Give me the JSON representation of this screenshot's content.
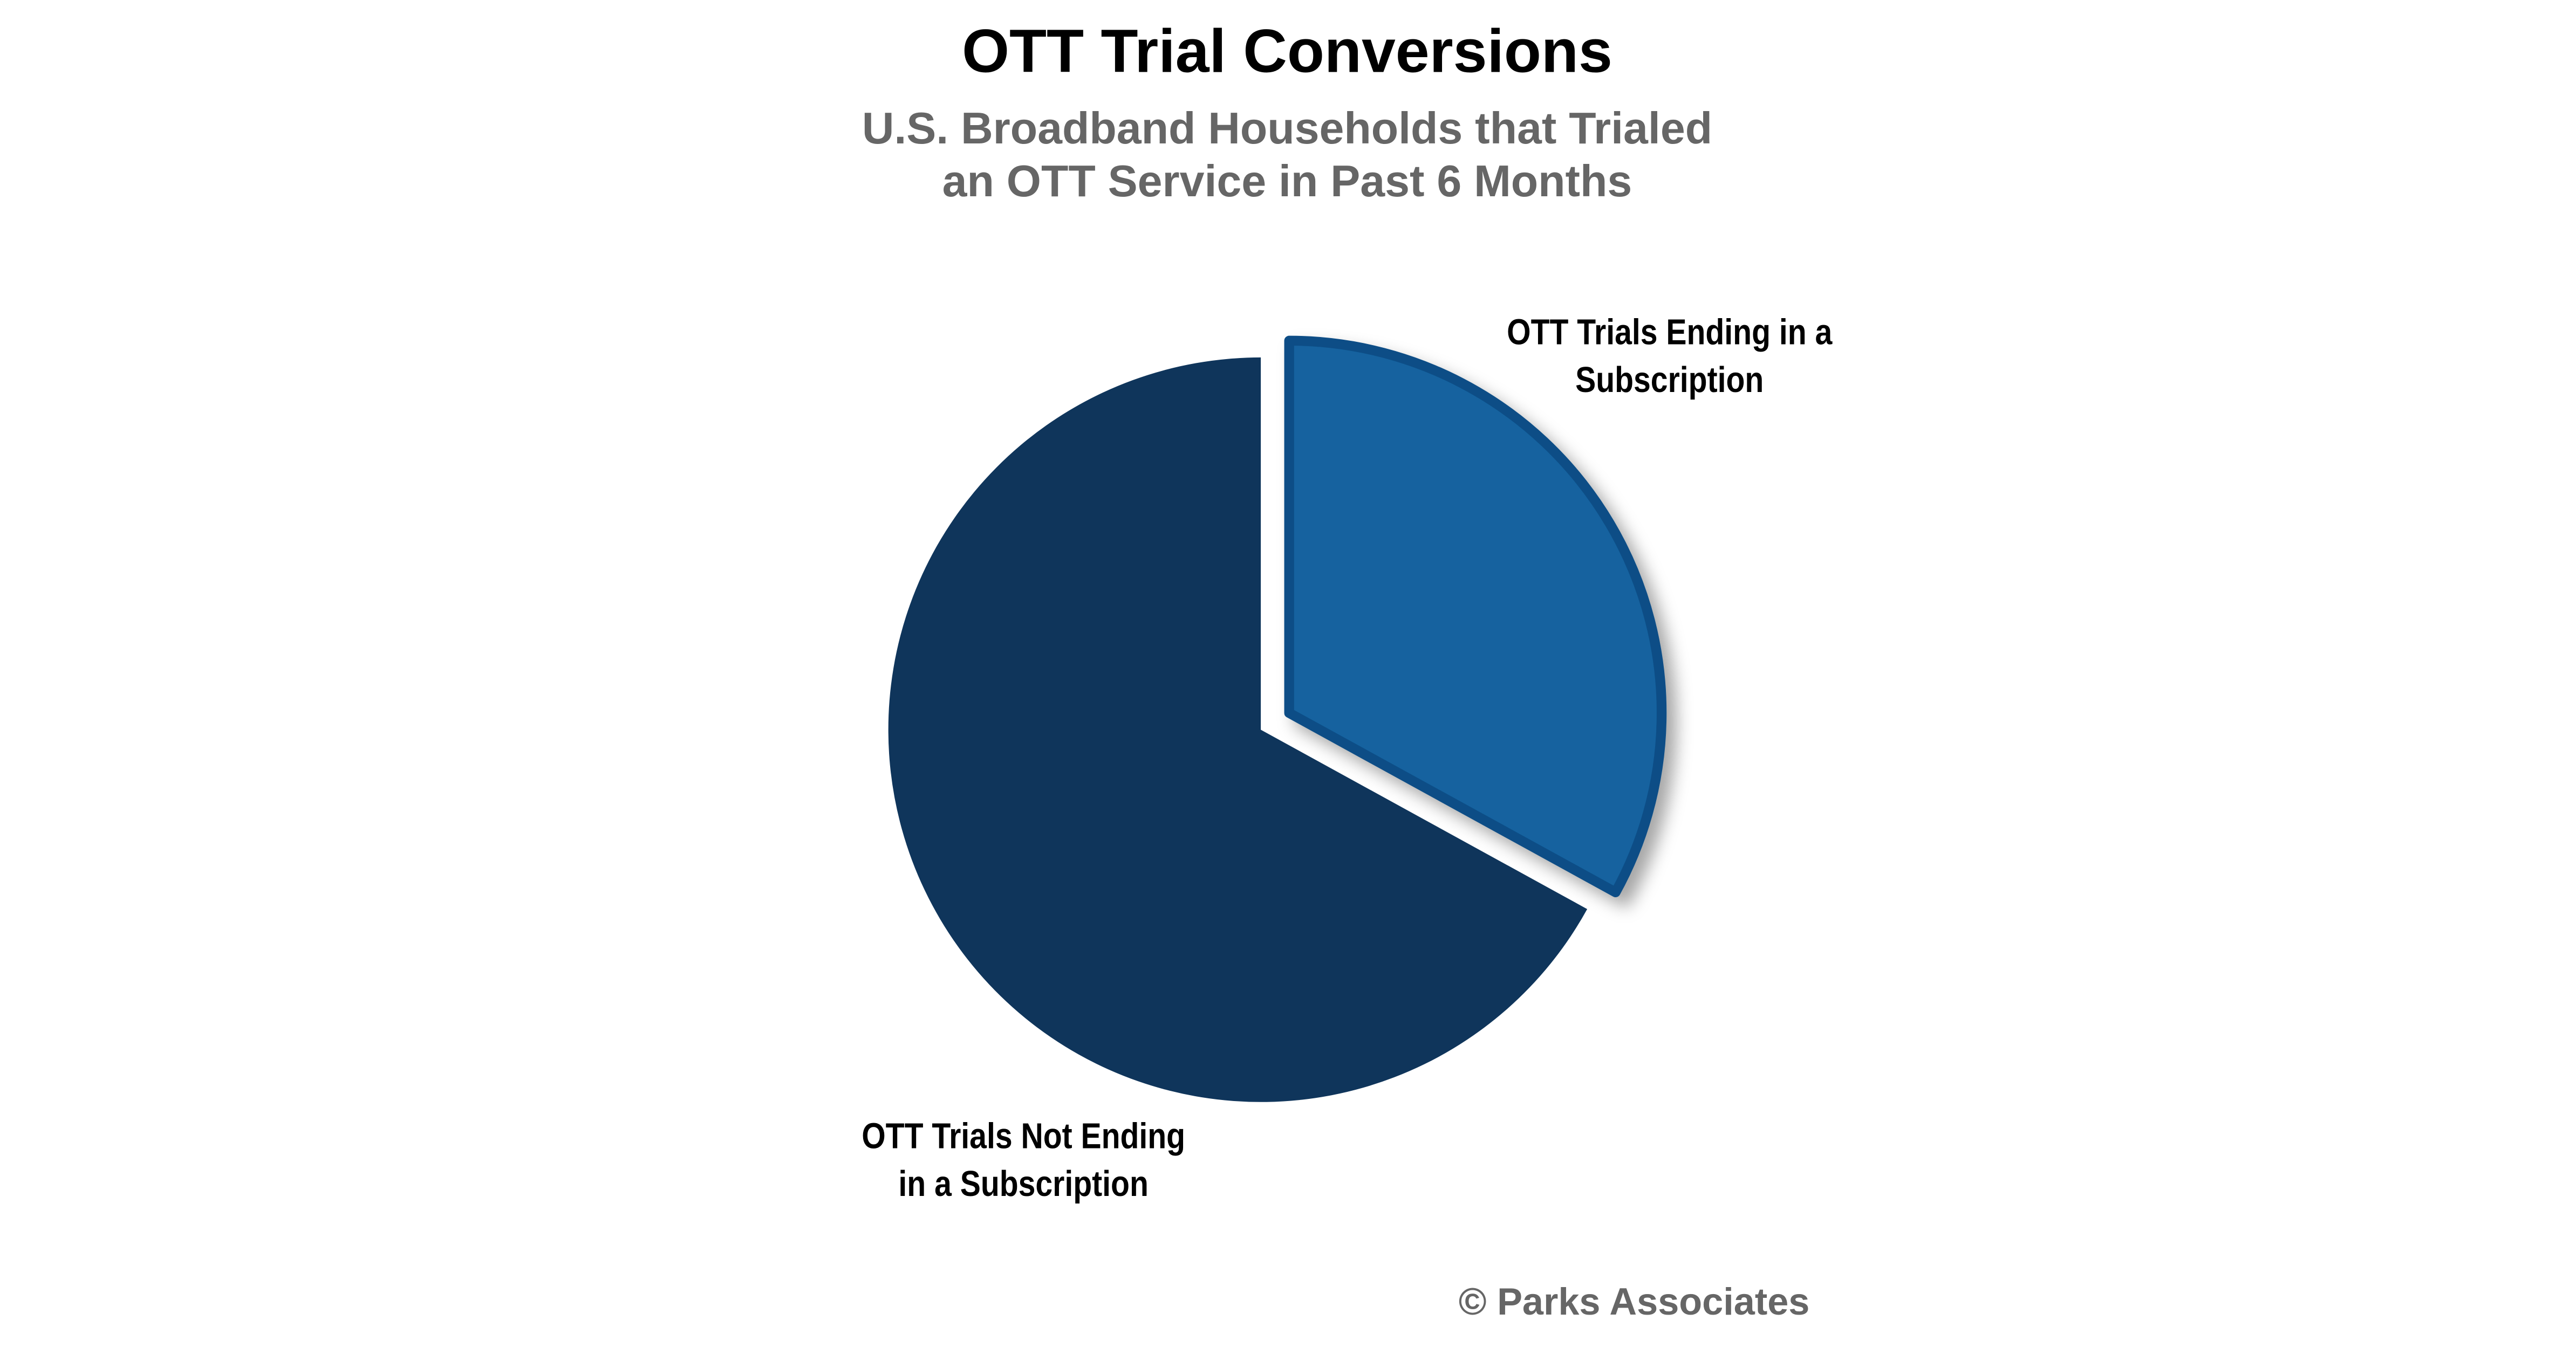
{
  "chart_data": {
    "type": "pie",
    "title": "OTT Trial Conversions",
    "subtitle": [
      "U.S. Broadband Households that Trialed",
      "an OTT Service in Past 6 Months"
    ],
    "categories": [
      "OTT Trials Ending in a Subscription",
      "OTT Trials Not Ending in a Subscription"
    ],
    "values": [
      33,
      67
    ],
    "colors": [
      "#12629f",
      "#0f355b"
    ],
    "source": "© Parks Associates"
  }
}
